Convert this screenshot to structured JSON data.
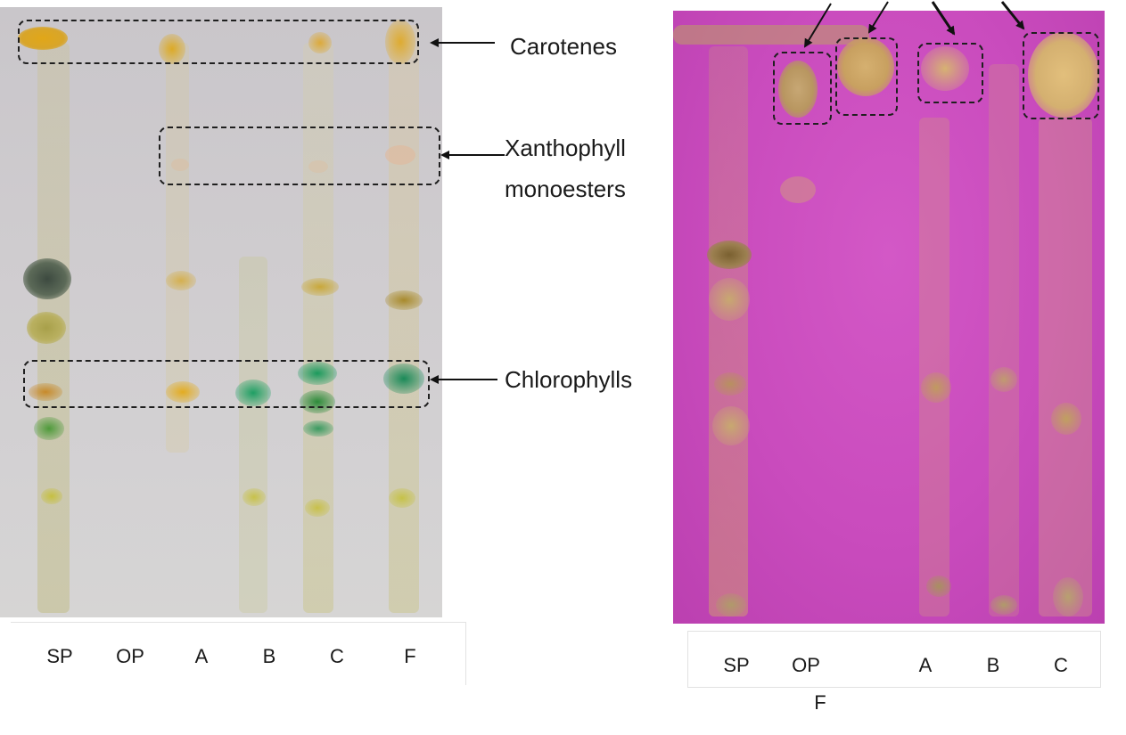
{
  "left_panel": {
    "lanes": [
      "SP",
      "OP",
      "A",
      "B",
      "C",
      "F"
    ]
  },
  "right_panel": {
    "lanes": [
      "SP",
      "OP",
      "A",
      "B",
      "C"
    ],
    "extra_label": "F"
  },
  "annotations": {
    "carotenes": "Carotenes",
    "xanthophyll_line1": "Xanthophyll",
    "xanthophyll_line2": "monoesters",
    "chlorophylls": "Chlorophylls"
  },
  "colors": {
    "left_plate_background": "#cfcccf",
    "right_plate_background": "#c94bbd",
    "carotene_spot": "#d9a520",
    "chlorophyll_spot": "#2f9a5a",
    "outline": "#1f1f1f"
  }
}
